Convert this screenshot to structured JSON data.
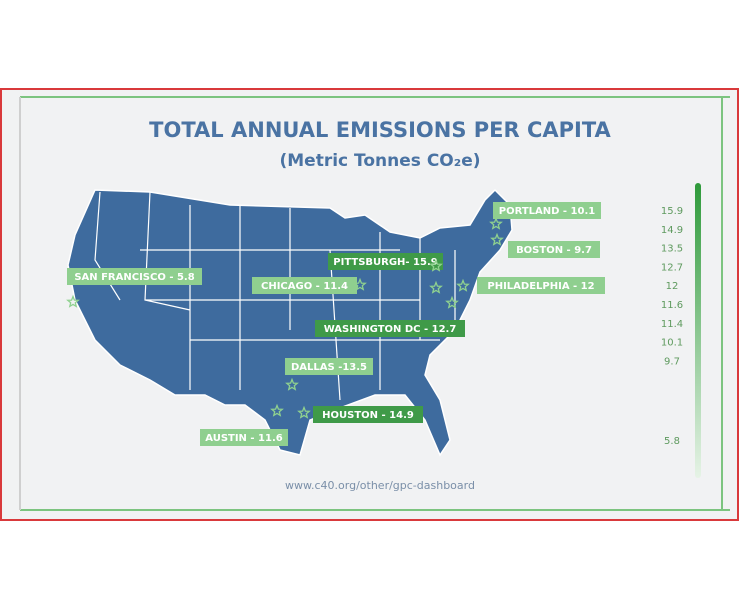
{
  "title": "TOTAL ANNUAL EMISSIONS PER CAPITA",
  "subtitle": "(Metric Tonnes CO₂e)",
  "cities": [
    "PORTLAND - 10.1",
    "BOSTON - 9.7",
    "PITTSBURGH- 15.9",
    "SAN FRANCISCO - 5.8",
    "CHICAGO - 11.4",
    "PHILADELPHIA - 12",
    "WASHINGTON DC - 12.7",
    "DALLAS -13.5",
    "HOUSTON - 14.9",
    "AUSTIN - 11.6"
  ],
  "scale": [
    15.9,
    14.9,
    13.5,
    12.7,
    12,
    11.6,
    11.4,
    10.1,
    9.7,
    5.8
  ],
  "source": "www.c40.org/other/gpc-dashboard"
}
